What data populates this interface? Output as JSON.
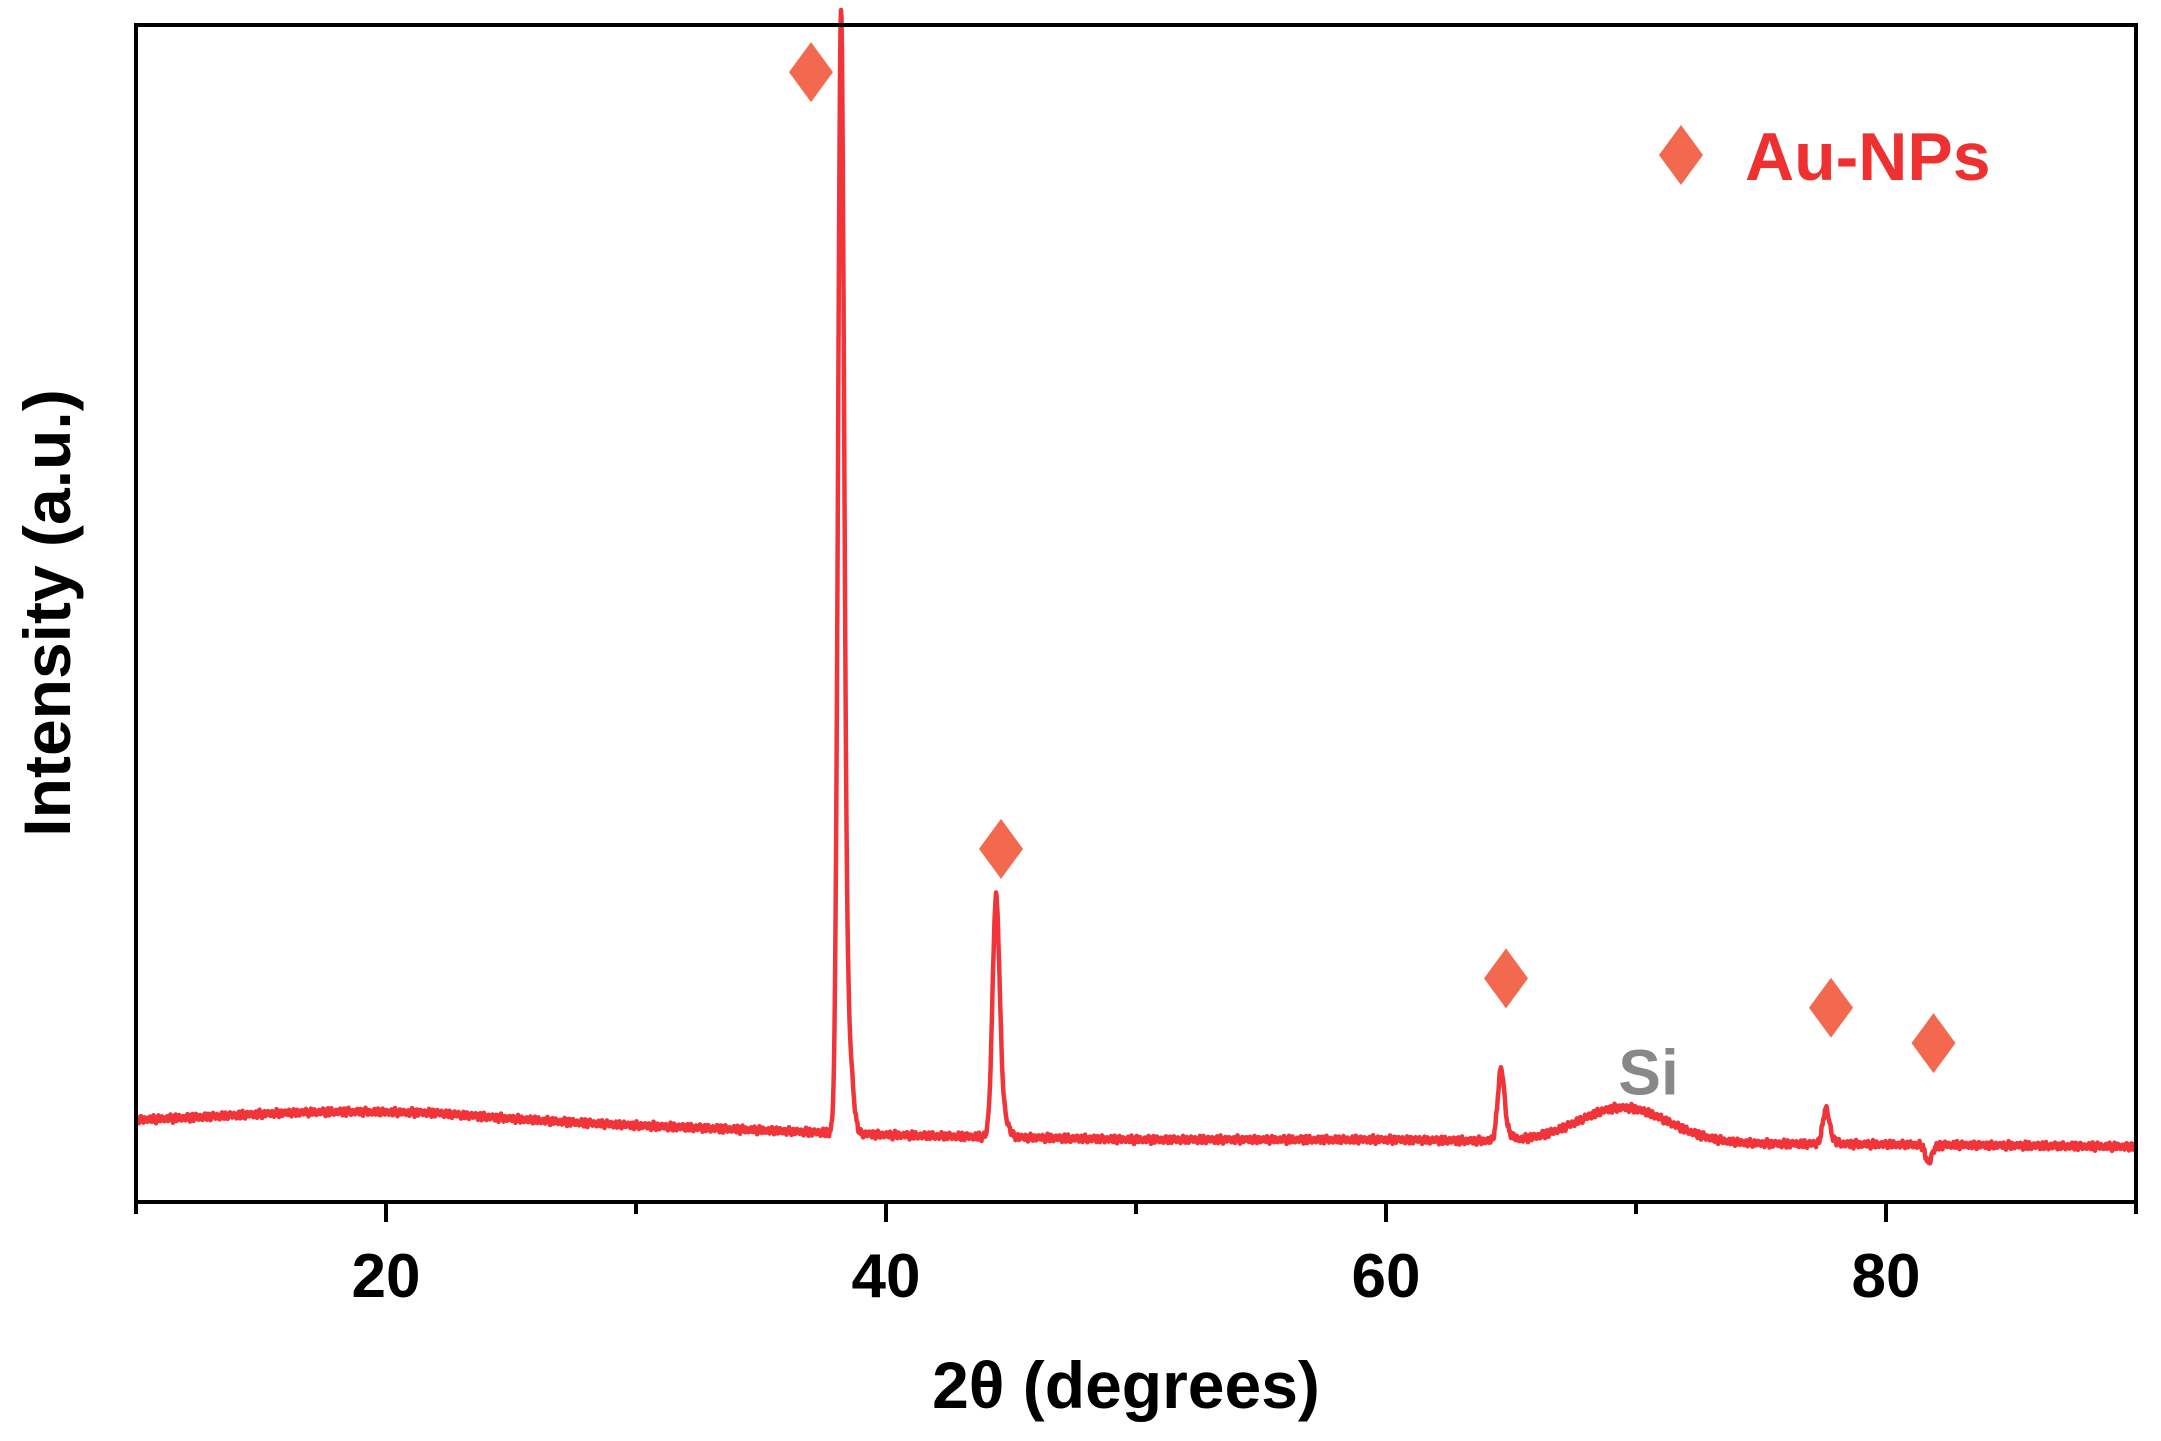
{
  "chart_data": {
    "type": "line",
    "title": "",
    "xlabel": "2θ (degrees)",
    "ylabel": "Intensity (a.u.)",
    "xlim": [
      10,
      90
    ],
    "ylim": [
      0,
      100
    ],
    "x_ticks": [
      20,
      40,
      60,
      80
    ],
    "x_minor_ticks": [
      10,
      30,
      50,
      70,
      90
    ],
    "y_ticks_shown": false,
    "grid": false,
    "legend": {
      "position": "top-right",
      "entries": [
        {
          "marker": "diamond",
          "label": "Au-NPs"
        }
      ]
    },
    "series": [
      {
        "color": "#f0343a",
        "baseline": [
          [
            10,
            6.9
          ],
          [
            22,
            7.3
          ],
          [
            30,
            6.5
          ],
          [
            40,
            5.7
          ],
          [
            50,
            5.3
          ],
          [
            60,
            5.3
          ],
          [
            70,
            5.0
          ],
          [
            80,
            4.9
          ],
          [
            90,
            4.7
          ]
        ],
        "bumps": [
          {
            "center": 17.5,
            "height": 0.5,
            "width": 4.0
          },
          {
            "center": 69.5,
            "height": 3.0,
            "width": 1.8
          }
        ],
        "peaks": [
          {
            "x": 38.2,
            "intensity": 98.0,
            "width": 0.12
          },
          {
            "x": 44.4,
            "intensity": 25.0,
            "width": 0.14
          },
          {
            "x": 64.6,
            "intensity": 11.0,
            "width": 0.13
          },
          {
            "x": 77.6,
            "intensity": 7.8,
            "width": 0.13
          },
          {
            "x": 81.7,
            "intensity": 3.4,
            "width": 0.12
          }
        ]
      }
    ],
    "annotations": [
      {
        "label": "Si",
        "x": 70.5,
        "y": 11.0,
        "color": "#888888"
      }
    ],
    "peak_markers": [
      {
        "marker": "diamond",
        "x": 37.0,
        "y": 96.0
      },
      {
        "marker": "diamond",
        "x": 44.6,
        "y": 30.0
      },
      {
        "marker": "diamond",
        "x": 64.8,
        "y": 19.0
      },
      {
        "marker": "diamond",
        "x": 77.8,
        "y": 16.5
      },
      {
        "marker": "diamond",
        "x": 81.9,
        "y": 13.5
      }
    ],
    "marker_color": "#f26950",
    "label_color": "#ee3030"
  }
}
